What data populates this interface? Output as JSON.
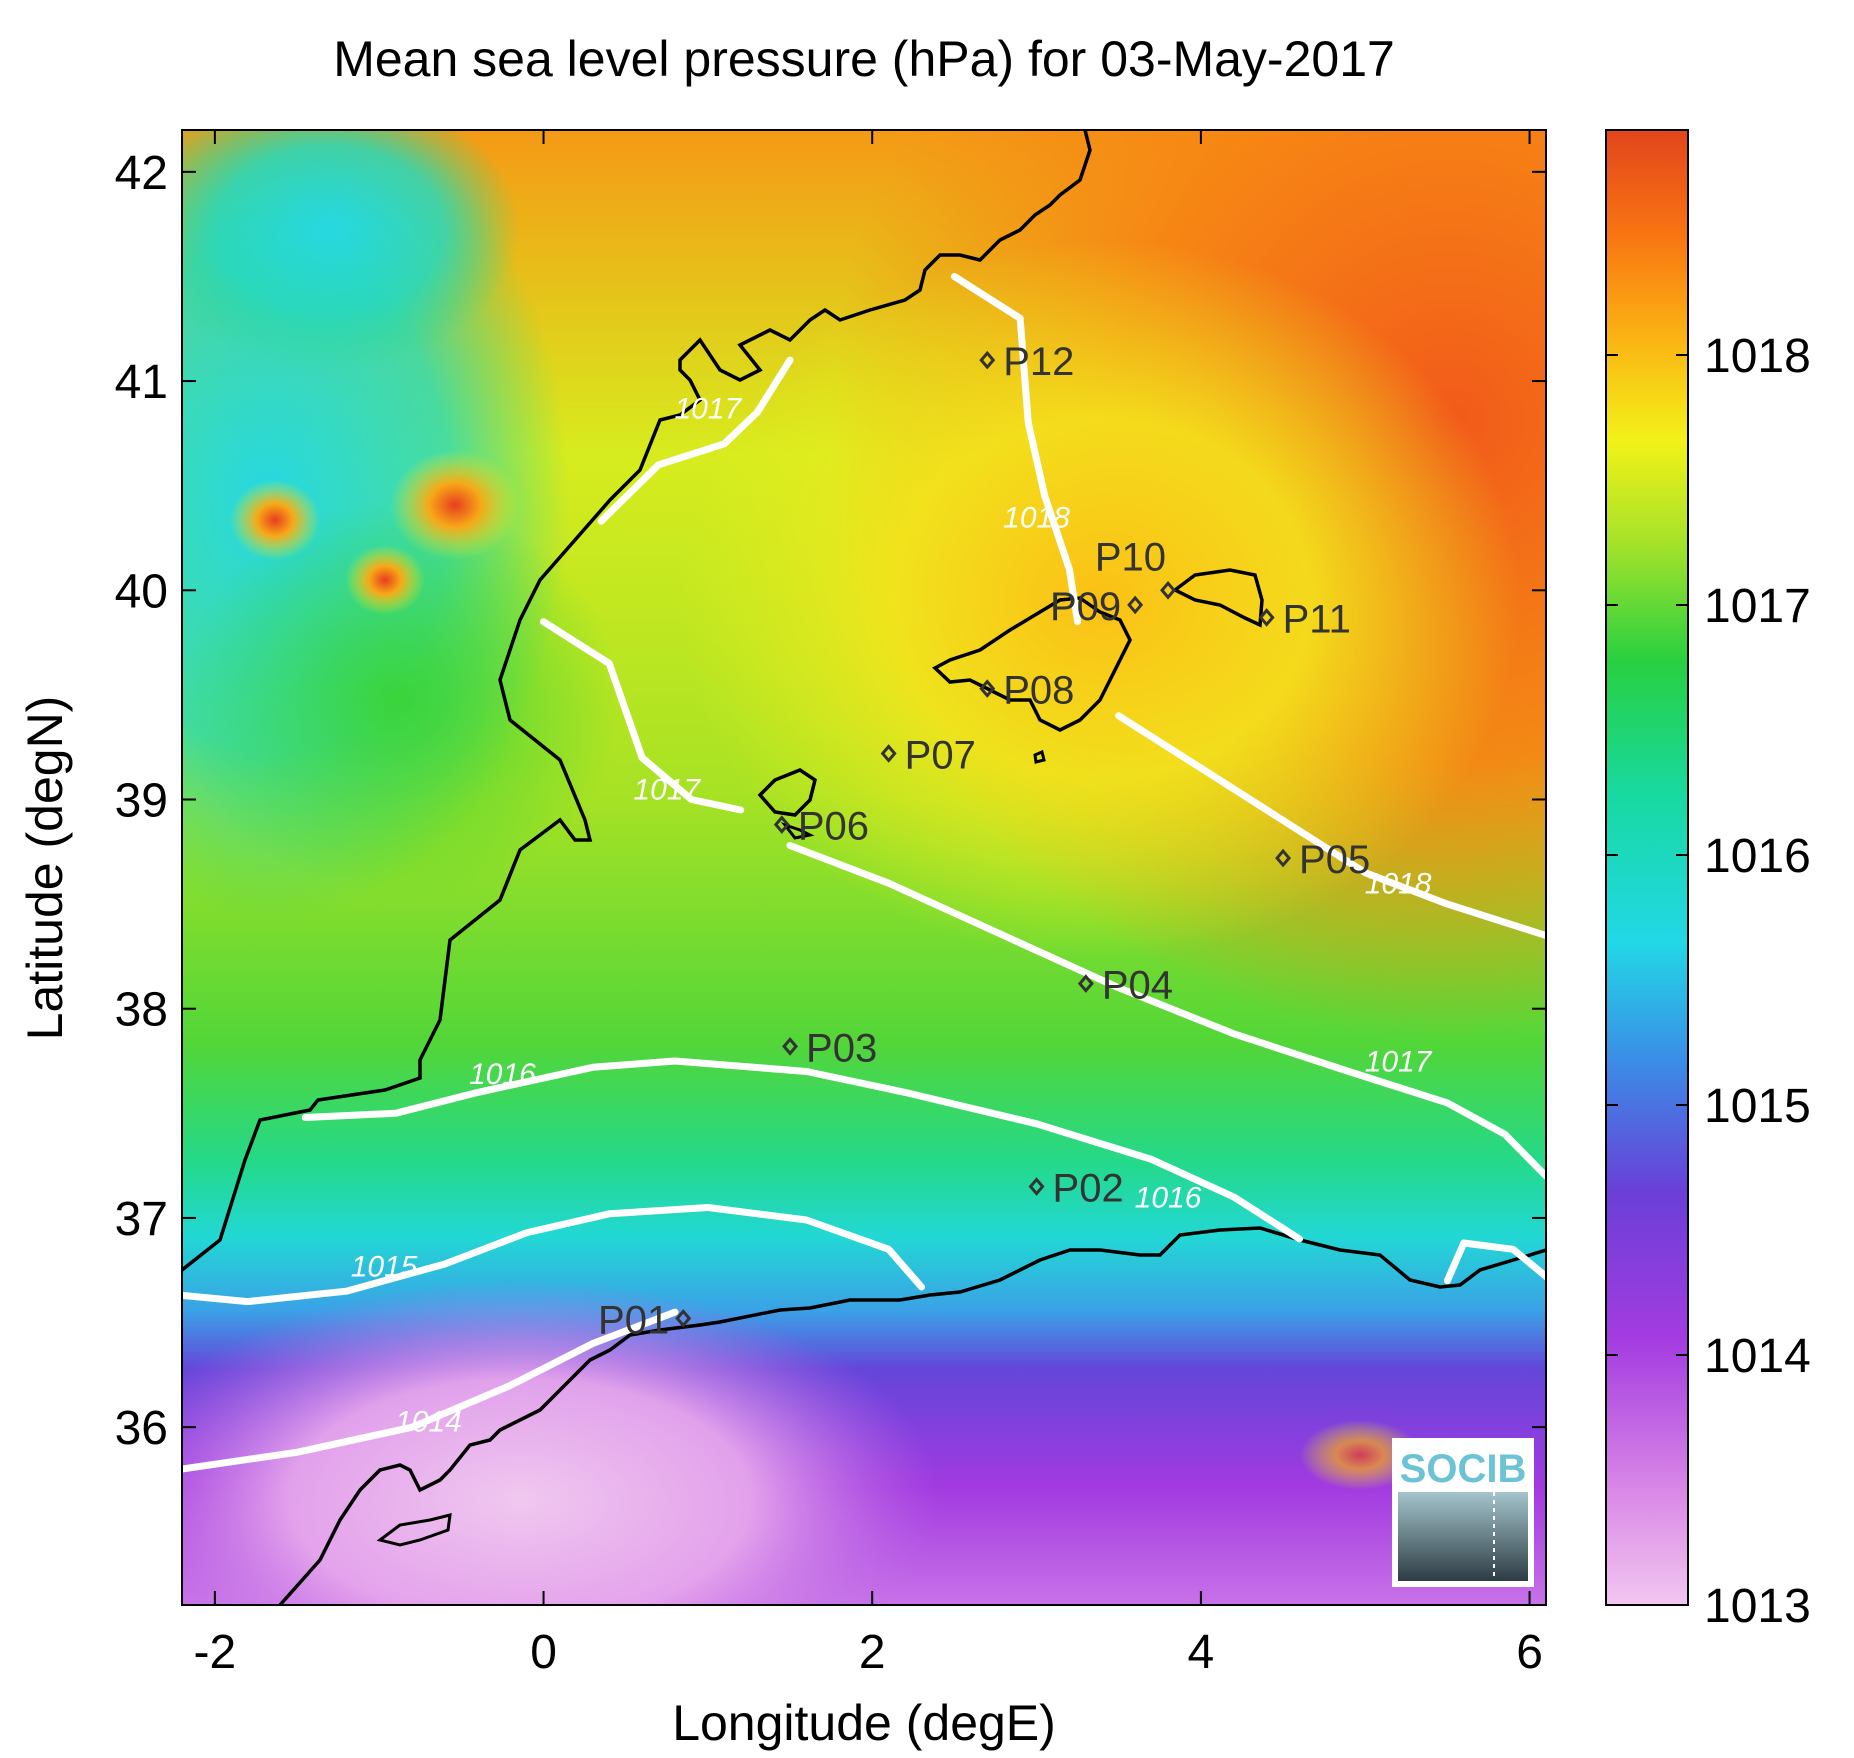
{
  "title": "Mean sea level pressure (hPa) for 03-May-2017",
  "xlabel": "Longitude (degE)",
  "ylabel": "Latitude (degN)",
  "xlim": [
    -2.2,
    6.1
  ],
  "ylim": [
    35.15,
    42.2
  ],
  "xticks": [
    -2,
    0,
    2,
    4,
    6
  ],
  "yticks": [
    36,
    37,
    38,
    39,
    40,
    41,
    42
  ],
  "colorbar": {
    "min": 1013,
    "max": 1018.9,
    "ticks": [
      1013,
      1014,
      1015,
      1016,
      1017,
      1018
    ]
  },
  "logo_text": "SOCIB",
  "chart_data": {
    "type": "heatmap",
    "quantity": "Mean sea level pressure (hPa)",
    "date": "03-May-2017",
    "stations": [
      {
        "name": "P01",
        "lon": 0.85,
        "lat": 36.52
      },
      {
        "name": "P02",
        "lon": 3.0,
        "lat": 37.15
      },
      {
        "name": "P03",
        "lon": 1.5,
        "lat": 37.82
      },
      {
        "name": "P04",
        "lon": 3.3,
        "lat": 38.12
      },
      {
        "name": "P05",
        "lon": 4.5,
        "lat": 38.72
      },
      {
        "name": "P06",
        "lon": 1.45,
        "lat": 38.88
      },
      {
        "name": "P07",
        "lon": 2.1,
        "lat": 39.22
      },
      {
        "name": "P08",
        "lon": 2.7,
        "lat": 39.53
      },
      {
        "name": "P09",
        "lon": 3.6,
        "lat": 39.93
      },
      {
        "name": "P10",
        "lon": 3.8,
        "lat": 40.0
      },
      {
        "name": "P11",
        "lon": 4.4,
        "lat": 39.87
      },
      {
        "name": "P12",
        "lon": 2.7,
        "lat": 41.1
      }
    ],
    "contours": [
      {
        "label": "1014",
        "label_lon": -0.7,
        "label_lat": 35.98,
        "points": [
          [
            -2.2,
            35.8
          ],
          [
            -1.5,
            35.88
          ],
          [
            -0.8,
            36.0
          ],
          [
            -0.2,
            36.2
          ],
          [
            0.3,
            36.4
          ],
          [
            0.8,
            36.55
          ]
        ]
      },
      {
        "label": "1015",
        "label_lon": -0.97,
        "label_lat": 36.72,
        "points": [
          [
            -2.2,
            36.63
          ],
          [
            -1.8,
            36.6
          ],
          [
            -1.2,
            36.65
          ],
          [
            -0.6,
            36.78
          ],
          [
            -0.1,
            36.93
          ],
          [
            0.4,
            37.02
          ],
          [
            1.0,
            37.05
          ],
          [
            1.6,
            36.99
          ],
          [
            2.1,
            36.85
          ],
          [
            2.3,
            36.67
          ]
        ]
      },
      {
        "label": "1016",
        "label_lon": -0.25,
        "label_lat": 37.64,
        "points": [
          [
            -1.45,
            37.48
          ],
          [
            -0.9,
            37.5
          ],
          [
            -0.4,
            37.6
          ],
          [
            0.3,
            37.72
          ],
          [
            0.8,
            37.75
          ],
          [
            1.6,
            37.7
          ],
          [
            2.2,
            37.6
          ],
          [
            3.0,
            37.45
          ],
          [
            3.7,
            37.28
          ],
          [
            4.2,
            37.1
          ],
          [
            4.6,
            36.9
          ]
        ]
      },
      {
        "label": "1016",
        "label_lon": 3.8,
        "label_lat": 37.05,
        "points": [
          [
            5.5,
            36.7
          ],
          [
            5.6,
            36.88
          ],
          [
            5.9,
            36.85
          ],
          [
            6.1,
            36.72
          ]
        ]
      },
      {
        "label": "1017",
        "label_lon": 1.0,
        "label_lat": 40.82,
        "points": [
          [
            0.35,
            40.33
          ],
          [
            0.7,
            40.6
          ],
          [
            1.1,
            40.7
          ],
          [
            1.3,
            40.85
          ],
          [
            1.5,
            41.1
          ]
        ]
      },
      {
        "label": "1017",
        "label_lon": 0.75,
        "label_lat": 39.0,
        "points": [
          [
            0.0,
            39.85
          ],
          [
            0.4,
            39.65
          ],
          [
            0.6,
            39.2
          ],
          [
            0.9,
            39.0
          ],
          [
            1.2,
            38.95
          ]
        ]
      },
      {
        "label": "1017",
        "label_lon": 5.2,
        "label_lat": 37.7,
        "points": [
          [
            1.5,
            38.78
          ],
          [
            2.1,
            38.6
          ],
          [
            2.8,
            38.35
          ],
          [
            3.5,
            38.1
          ],
          [
            4.2,
            37.88
          ],
          [
            4.9,
            37.7
          ],
          [
            5.5,
            37.55
          ],
          [
            5.85,
            37.4
          ],
          [
            6.1,
            37.2
          ]
        ]
      },
      {
        "label": "1018",
        "label_lon": 3.0,
        "label_lat": 40.3,
        "points": [
          [
            2.5,
            41.5
          ],
          [
            2.9,
            41.3
          ],
          [
            2.95,
            40.8
          ],
          [
            3.05,
            40.45
          ],
          [
            3.2,
            40.1
          ],
          [
            3.25,
            39.85
          ]
        ]
      },
      {
        "label": "1018",
        "label_lon": 5.2,
        "label_lat": 38.55,
        "points": [
          [
            3.5,
            39.4
          ],
          [
            4.0,
            39.15
          ],
          [
            4.5,
            38.9
          ],
          [
            5.0,
            38.65
          ],
          [
            5.5,
            38.5
          ],
          [
            6.1,
            38.35
          ]
        ]
      }
    ]
  }
}
